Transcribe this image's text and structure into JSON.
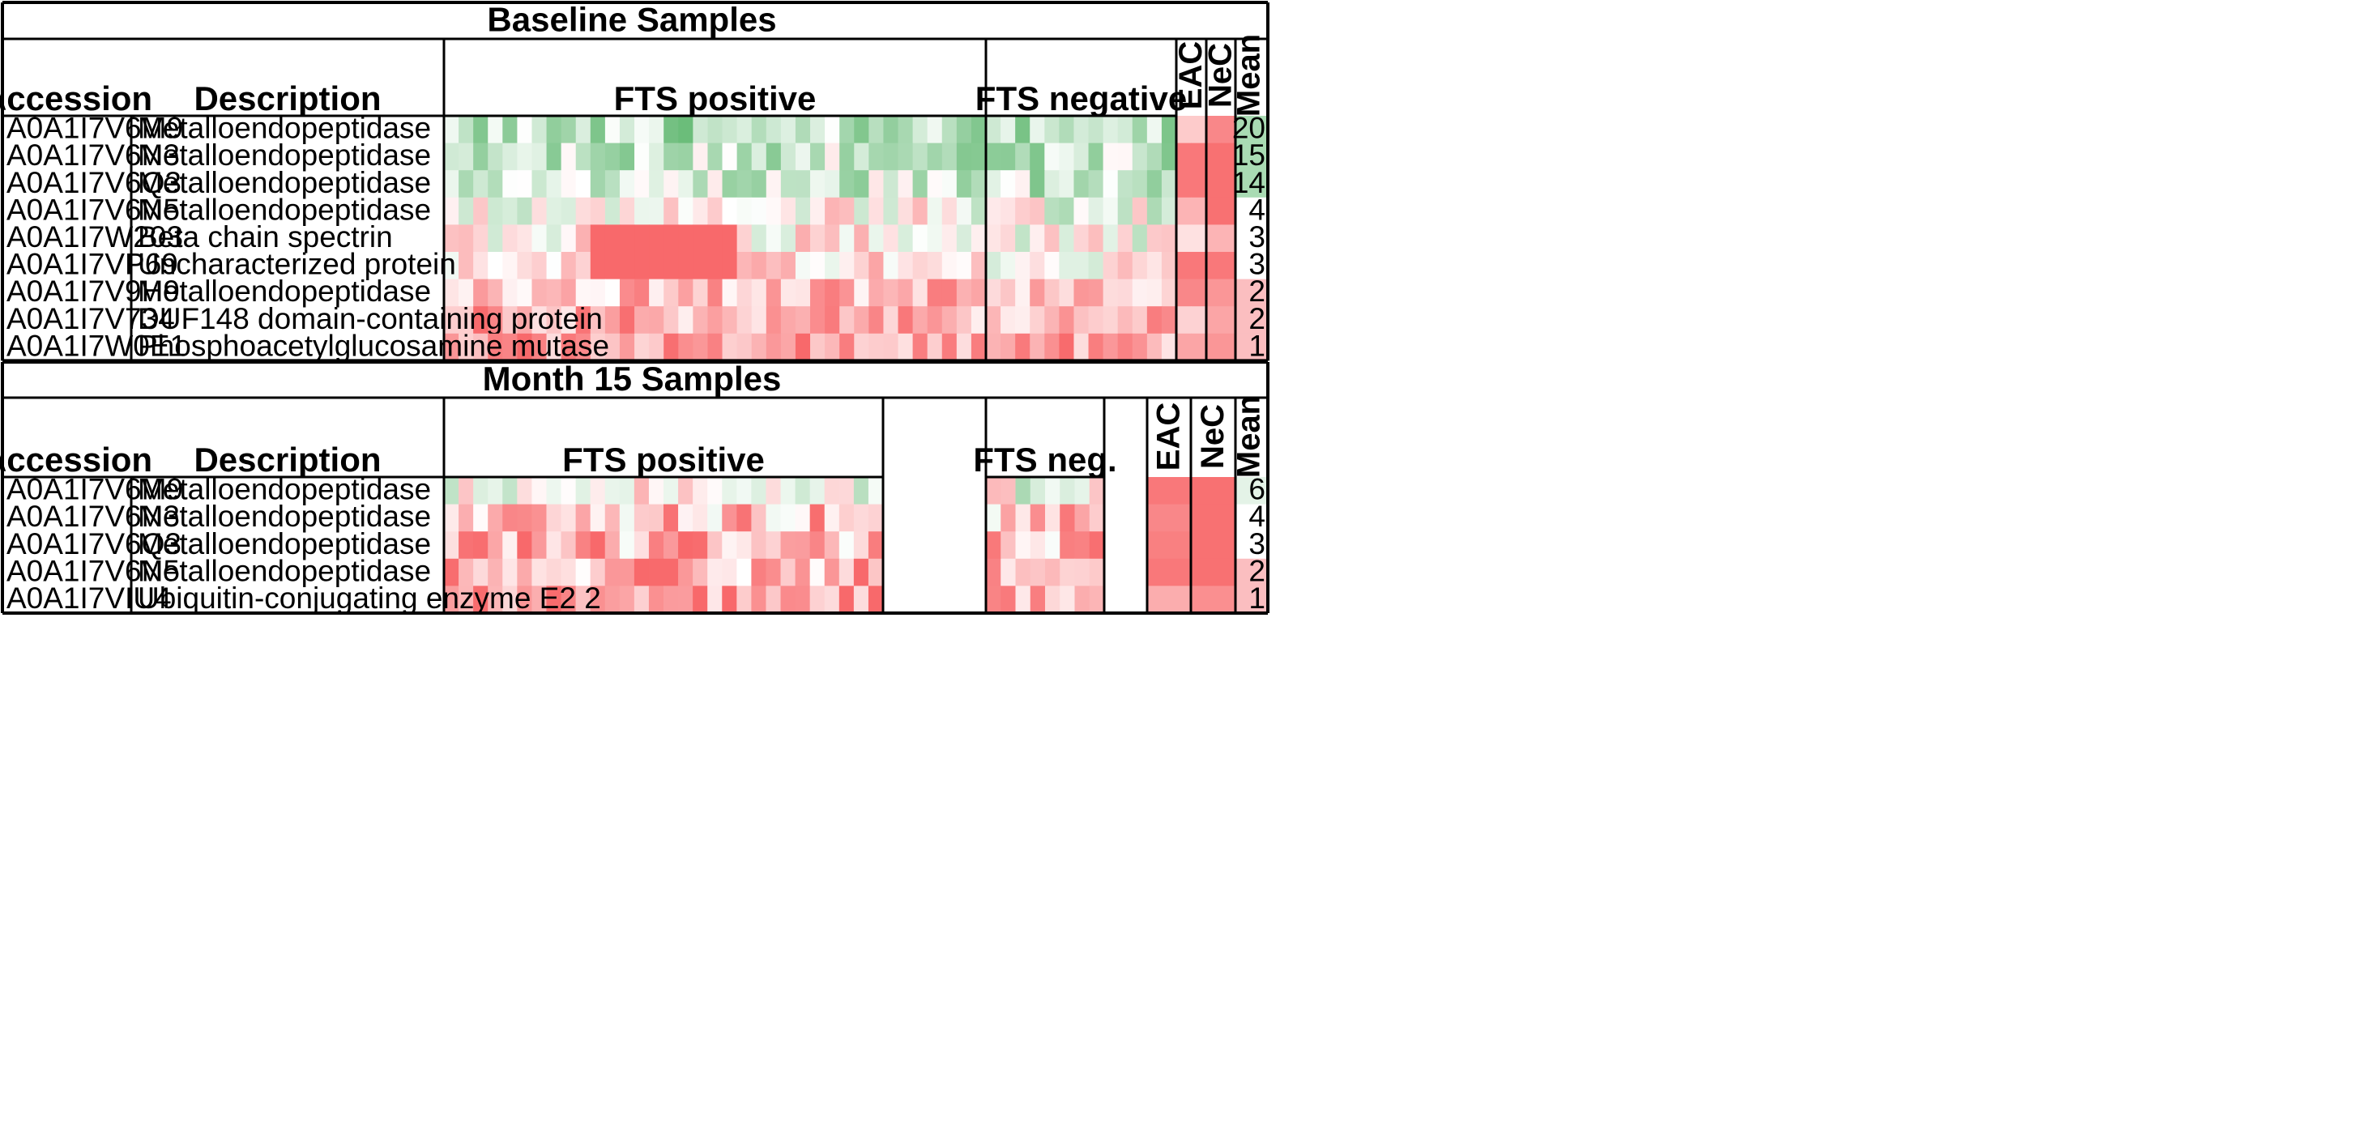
{
  "chart_data": [
    {
      "type": "heatmap",
      "title": "Baseline Samples",
      "column_headers": {
        "accession": "Accession",
        "description": "Description",
        "groups": [
          "FTS positive",
          "FTS negative",
          "EAC",
          "NeC",
          "Mean"
        ]
      },
      "group_sample_counts": {
        "FTS positive": 37,
        "FTS negative": 13,
        "EAC": 2,
        "NeC": 2
      },
      "rows": [
        {
          "accession": "A0A1I7V6M9",
          "description": "Metalloendopeptidase",
          "mean": "20"
        },
        {
          "accession": "A0A1I7V6N3",
          "description": "Metalloendopeptidase",
          "mean": "15"
        },
        {
          "accession": "A0A1I7V6Q3",
          "description": "Metalloendopeptidase",
          "mean": "14"
        },
        {
          "accession": "A0A1I7V6N5",
          "description": "Metalloendopeptidase",
          "mean": "4"
        },
        {
          "accession": "A0A1I7W203",
          "description": "Beta chain spectrin",
          "mean": "3"
        },
        {
          "accession": "A0A1I7VP69",
          "description": "Uncharacterized protein",
          "mean": "3"
        },
        {
          "accession": "A0A1I7V9H9",
          "description": "Metalloendopeptidase",
          "mean": "2"
        },
        {
          "accession": "A0A1I7V734",
          "description": "DUF148 domain-containing protein",
          "mean": "2"
        },
        {
          "accession": "A0A1I7W0E1",
          "description": "Phosphoacetylglucosamine mutase",
          "mean": "1"
        }
      ]
    },
    {
      "type": "heatmap",
      "title": "Month 15 Samples",
      "column_headers": {
        "accession": "Accession",
        "description": "Description",
        "groups": [
          "FTS positive",
          "FTS neg.",
          "EAC",
          "NeC",
          "Mean"
        ]
      },
      "group_sample_counts": {
        "FTS positive": 30,
        "FTS neg.": 8,
        "EAC": 2,
        "NeC": 2
      },
      "rows": [
        {
          "accession": "A0A1I7V6M9",
          "description": "Metalloendopeptidase",
          "mean": "6"
        },
        {
          "accession": "A0A1I7V6N3",
          "description": "Metalloendopeptidase",
          "mean": "4"
        },
        {
          "accession": "A0A1I7V6Q3",
          "description": "Metalloendopeptidase",
          "mean": "3"
        },
        {
          "accession": "A0A1I7V6N5",
          "description": "Metalloendopeptidase",
          "mean": "2"
        },
        {
          "accession": "A0A1I7VIU4",
          "description": "Ubiquitin-conjugating enzyme E2 2",
          "mean": "1"
        }
      ]
    }
  ],
  "colors": {
    "high": "#5ab56b",
    "mid": "#ffffff",
    "low": "#f8696b",
    "line": "#000000",
    "mean_high": "#a9dbb3",
    "mean_low": "#fbbec0"
  }
}
